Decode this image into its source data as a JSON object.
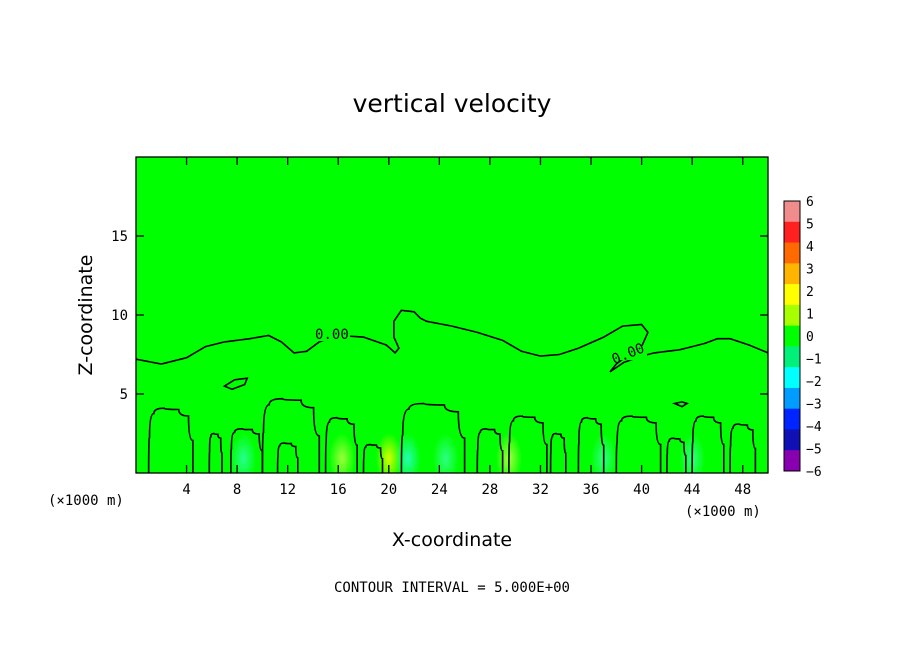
{
  "chart_data": {
    "type": "heatmap",
    "title": "vertical velocity",
    "xlabel": "X-coordinate",
    "ylabel": "Z-coordinate",
    "x_unit_label": "(×1000 m)",
    "x_unit_label_right": "(×1000 m)",
    "x_ticks": [
      4,
      8,
      12,
      16,
      20,
      24,
      28,
      32,
      36,
      40,
      44,
      48
    ],
    "y_ticks": [
      5,
      10,
      15
    ],
    "xlim": [
      0,
      50
    ],
    "ylim": [
      0,
      20
    ],
    "grid": false,
    "contour_interval_text": "CONTOUR INTERVAL = 5.000E+00",
    "contour_labels": [
      {
        "text": "0.00",
        "x": 15.5,
        "z": 8.6
      },
      {
        "text": "0.00",
        "x": 39.0,
        "z": 7.4
      }
    ],
    "upper_contour": [
      [
        0,
        7.2
      ],
      [
        2,
        6.9
      ],
      [
        4,
        7.3
      ],
      [
        5.5,
        8.0
      ],
      [
        7,
        8.3
      ],
      [
        9,
        8.5
      ],
      [
        10.5,
        8.7
      ],
      [
        11.5,
        8.3
      ],
      [
        12.5,
        7.6
      ],
      [
        13.5,
        7.7
      ],
      [
        14.5,
        8.3
      ],
      [
        16,
        8.7
      ],
      [
        18,
        8.6
      ],
      [
        19.8,
        8.1
      ],
      [
        20.5,
        7.6
      ],
      [
        20.8,
        7.9
      ],
      [
        20.4,
        8.6
      ],
      [
        20.4,
        9.6
      ],
      [
        21,
        10.3
      ],
      [
        22,
        10.2
      ],
      [
        22.5,
        9.8
      ],
      [
        23,
        9.6
      ],
      [
        25,
        9.3
      ],
      [
        27,
        8.9
      ],
      [
        29,
        8.4
      ],
      [
        30.5,
        7.7
      ],
      [
        32,
        7.4
      ],
      [
        33.5,
        7.5
      ],
      [
        35,
        7.9
      ],
      [
        37,
        8.6
      ],
      [
        38.5,
        9.3
      ],
      [
        40,
        9.4
      ],
      [
        40.5,
        8.9
      ],
      [
        40,
        8.0
      ],
      [
        39,
        7.5
      ],
      [
        38,
        6.9
      ],
      [
        37.5,
        6.4
      ],
      [
        38.6,
        7.0
      ],
      [
        40,
        7.4
      ],
      [
        41,
        7.6
      ],
      [
        42,
        7.7
      ],
      [
        43,
        7.8
      ],
      [
        44,
        8.0
      ],
      [
        45,
        8.2
      ],
      [
        46,
        8.5
      ],
      [
        47,
        8.5
      ],
      [
        48.5,
        8.1
      ],
      [
        50,
        7.6
      ]
    ],
    "closed_contours": [
      [
        [
          7,
          5.5
        ],
        [
          7.8,
          5.9
        ],
        [
          8.8,
          6.0
        ],
        [
          8.6,
          5.6
        ],
        [
          7.6,
          5.3
        ],
        [
          7,
          5.5
        ]
      ],
      [
        [
          42.6,
          4.4
        ],
        [
          43.2,
          4.5
        ],
        [
          43.6,
          4.4
        ],
        [
          43.2,
          4.2
        ],
        [
          42.6,
          4.4
        ]
      ]
    ],
    "plumes": [
      {
        "x0": 1.0,
        "x1": 4.5,
        "top": 4.1
      },
      {
        "x0": 5.8,
        "x1": 6.8,
        "top": 2.5
      },
      {
        "x0": 7.5,
        "x1": 10.0,
        "top": 2.8
      },
      {
        "x0": 10.0,
        "x1": 14.5,
        "top": 4.7
      },
      {
        "x0": 11.2,
        "x1": 12.8,
        "top": 1.9
      },
      {
        "x0": 15.0,
        "x1": 17.5,
        "top": 3.5
      },
      {
        "x0": 18.0,
        "x1": 19.5,
        "top": 1.8
      },
      {
        "x0": 21.0,
        "x1": 26.0,
        "top": 4.4
      },
      {
        "x0": 27.0,
        "x1": 29.0,
        "top": 2.8
      },
      {
        "x0": 29.5,
        "x1": 32.5,
        "top": 3.6
      },
      {
        "x0": 32.8,
        "x1": 34.0,
        "top": 2.5
      },
      {
        "x0": 35.0,
        "x1": 37.0,
        "top": 3.5
      },
      {
        "x0": 38.0,
        "x1": 41.5,
        "top": 3.6
      },
      {
        "x0": 42.0,
        "x1": 43.5,
        "top": 2.2
      },
      {
        "x0": 44.0,
        "x1": 46.5,
        "top": 3.6
      },
      {
        "x0": 47.0,
        "x1": 49.0,
        "top": 3.1
      }
    ],
    "colorbar": {
      "min": -6,
      "max": 6,
      "ticks": [
        6,
        5,
        4,
        3,
        2,
        1,
        0,
        -1,
        -2,
        -3,
        -4,
        -5,
        -6
      ],
      "colors": [
        "#f08c8c",
        "#ff2020",
        "#ff6a00",
        "#ffb400",
        "#ffff00",
        "#a8ff00",
        "#00ff00",
        "#00f07a",
        "#00ffff",
        "#009cff",
        "#0024ff",
        "#1010b4",
        "#8800b0"
      ]
    },
    "background_color": "#00ff00",
    "near_surface_anomalies": [
      {
        "x": 16.3,
        "color": "#9cff3a"
      },
      {
        "x": 20.0,
        "color": "#d8ff00"
      },
      {
        "x": 21.5,
        "color": "#24ffb0"
      },
      {
        "x": 29.5,
        "color": "#a6ff40"
      },
      {
        "x": 24.5,
        "color": "#2eff84"
      },
      {
        "x": 8.5,
        "color": "#28ff90"
      },
      {
        "x": 37.0,
        "color": "#2eff84"
      },
      {
        "x": 44.0,
        "color": "#2eff84"
      }
    ]
  }
}
